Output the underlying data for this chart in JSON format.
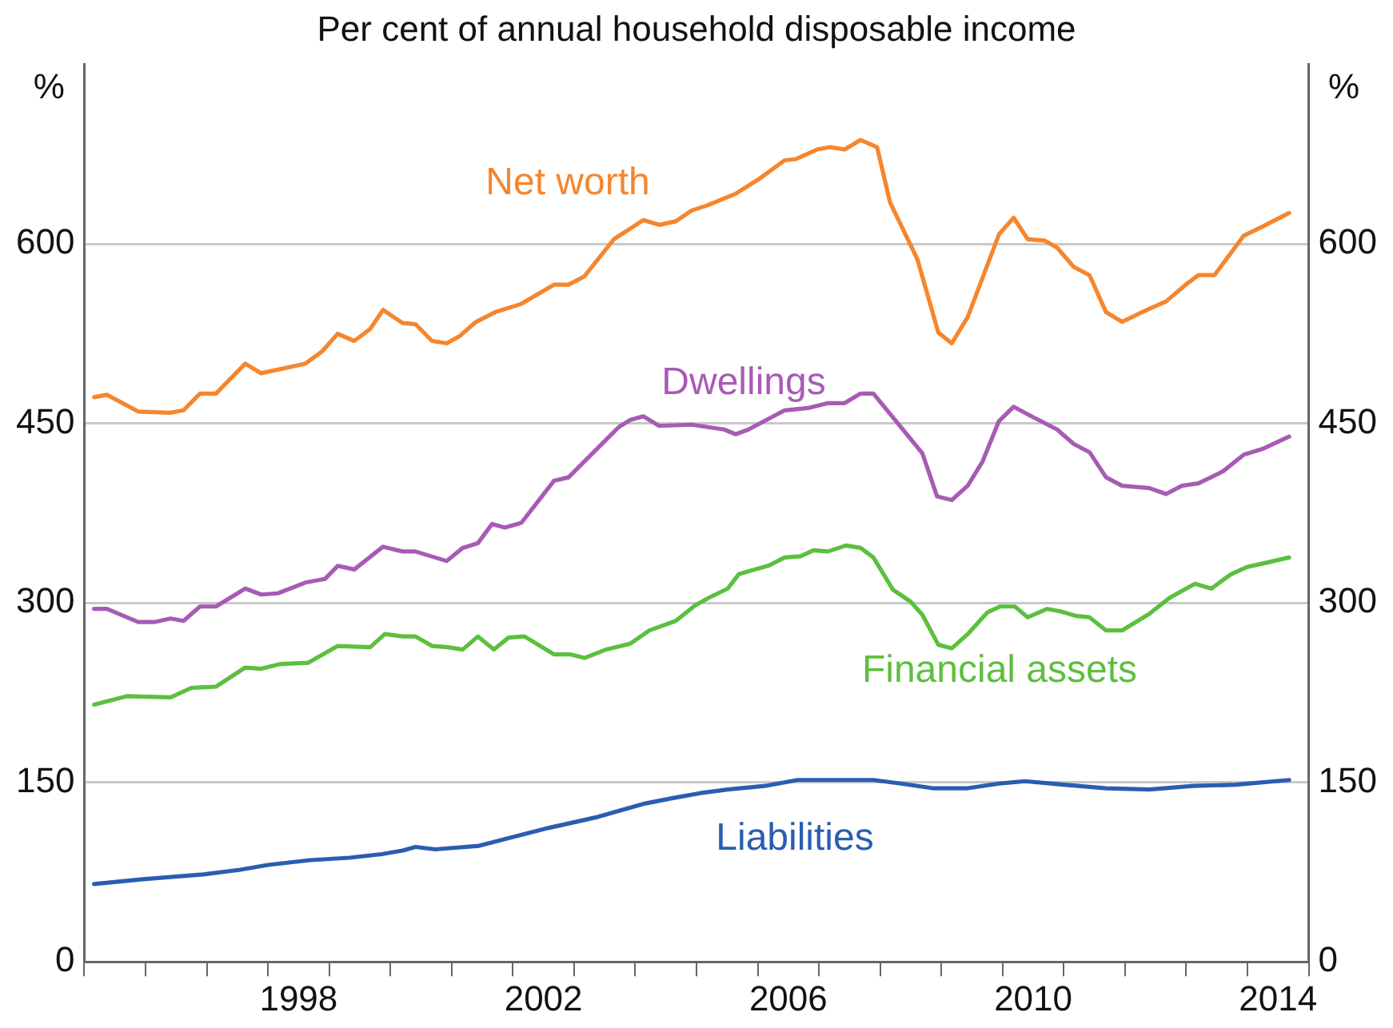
{
  "chart_data": {
    "type": "line",
    "title": "Per cent of annual household disposable income",
    "ylabel": "%",
    "y2label": "%",
    "xlim": [
      1995,
      2015
    ],
    "xticks": [
      {
        "value": 1995,
        "label": null
      },
      {
        "value": 1996,
        "label": null
      },
      {
        "value": 1997,
        "label": null
      },
      {
        "value": 1998,
        "label": null
      },
      {
        "value": 1998.5,
        "label": "1998"
      },
      {
        "value": 1999,
        "label": null
      },
      {
        "value": 2000,
        "label": null
      },
      {
        "value": 2001,
        "label": null
      },
      {
        "value": 2002,
        "label": null
      },
      {
        "value": 2002.5,
        "label": "2002"
      },
      {
        "value": 2003,
        "label": null
      },
      {
        "value": 2004,
        "label": null
      },
      {
        "value": 2005,
        "label": null
      },
      {
        "value": 2006,
        "label": null
      },
      {
        "value": 2006.5,
        "label": "2006"
      },
      {
        "value": 2007,
        "label": null
      },
      {
        "value": 2008,
        "label": null
      },
      {
        "value": 2009,
        "label": null
      },
      {
        "value": 2010,
        "label": null
      },
      {
        "value": 2010.5,
        "label": "2010"
      },
      {
        "value": 2011,
        "label": null
      },
      {
        "value": 2012,
        "label": null
      },
      {
        "value": 2013,
        "label": null
      },
      {
        "value": 2014,
        "label": null
      },
      {
        "value": 2014.5,
        "label": "2014"
      },
      {
        "value": 2015,
        "label": null
      }
    ],
    "ylim": [
      0,
      750
    ],
    "yticks": [
      0,
      150,
      300,
      450,
      600
    ],
    "y2lim": [
      0,
      750
    ],
    "y2ticks": [
      0,
      150,
      300,
      450,
      600
    ],
    "grid": "y",
    "legend": false,
    "marker": "none",
    "line_style": "solid",
    "series": [
      {
        "name": "Net worth",
        "color": "#f5862e",
        "x": [
          1995.16,
          1995.37,
          1995.88,
          1996.41,
          1996.62,
          1996.89,
          1997.15,
          1997.63,
          1997.89,
          1998.61,
          1998.88,
          1999.14,
          1999.41,
          1999.67,
          1999.88,
          2000.2,
          2000.41,
          2000.68,
          2000.92,
          2001.13,
          2001.4,
          2001.71,
          2002.14,
          2002.67,
          2002.91,
          2003.17,
          2003.65,
          2003.92,
          2004.13,
          2004.39,
          2004.66,
          2004.92,
          2005.16,
          2005.64,
          2006.04,
          2006.44,
          2006.62,
          2006.97,
          2007.18,
          2007.42,
          2007.68,
          2007.95,
          2008.16,
          2008.61,
          2008.95,
          2009.17,
          2009.43,
          2009.94,
          2010.18,
          2010.41,
          2010.68,
          2010.89,
          2011.16,
          2011.42,
          2011.69,
          2011.95,
          2012.4,
          2012.67,
          2012.99,
          2013.2,
          2013.46,
          2013.94,
          2014.26,
          2014.68
        ],
        "values": [
          472,
          474,
          460,
          459,
          461,
          475,
          475,
          500,
          492,
          500,
          510,
          525,
          519,
          529,
          545,
          534,
          533,
          519,
          517,
          523,
          535,
          543,
          550,
          566,
          566,
          573,
          604,
          613,
          620,
          616,
          619,
          628,
          632,
          642,
          655,
          670,
          671,
          679,
          681,
          679,
          687,
          681,
          635,
          587,
          526,
          517,
          539,
          608,
          622,
          604,
          603,
          597,
          581,
          574,
          543,
          535,
          546,
          552,
          566,
          574,
          574,
          607,
          615,
          626
        ]
      },
      {
        "name": "Dwellings",
        "color": "#a75bb5",
        "x": [
          1995.16,
          1995.37,
          1995.88,
          1996.14,
          1996.41,
          1996.62,
          1996.89,
          1997.15,
          1997.63,
          1997.89,
          1998.16,
          1998.61,
          1998.93,
          1999.14,
          1999.41,
          1999.88,
          2000.2,
          2000.41,
          2000.92,
          2001.18,
          2001.43,
          2001.66,
          2001.87,
          2002.14,
          2002.67,
          2002.91,
          2003.73,
          2003.92,
          2004.13,
          2004.39,
          2004.92,
          2005.45,
          2005.64,
          2005.85,
          2006.44,
          2006.83,
          2007.15,
          2007.42,
          2007.68,
          2007.89,
          2008.69,
          2008.93,
          2009.17,
          2009.43,
          2009.67,
          2009.94,
          2010.18,
          2010.47,
          2010.89,
          2011.16,
          2011.42,
          2011.69,
          2011.95,
          2012.4,
          2012.67,
          2012.93,
          2013.2,
          2013.6,
          2013.94,
          2014.26,
          2014.68
        ],
        "values": [
          295,
          295,
          284,
          284,
          287,
          285,
          297,
          297,
          312,
          307,
          308,
          317,
          320,
          331,
          328,
          347,
          343,
          343,
          335,
          346,
          350,
          366,
          363,
          367,
          402,
          405,
          447,
          453,
          456,
          448,
          449,
          445,
          441,
          445,
          461,
          463,
          467,
          467,
          475,
          475,
          425,
          389,
          386,
          398,
          418,
          452,
          464,
          456,
          445,
          433,
          426,
          405,
          398,
          396,
          391,
          398,
          400,
          410,
          424,
          429,
          439
        ]
      },
      {
        "name": "Financial assets",
        "color": "#5cbf3f",
        "x": [
          1995.16,
          1995.69,
          1996.41,
          1996.75,
          1997.15,
          1997.63,
          1997.89,
          1998.21,
          1998.66,
          1999.14,
          1999.67,
          1999.91,
          2000.2,
          2000.41,
          2000.68,
          2000.94,
          2001.18,
          2001.43,
          2001.69,
          2001.93,
          2002.19,
          2002.67,
          2002.93,
          2003.17,
          2003.52,
          2003.92,
          2004.23,
          2004.66,
          2004.98,
          2005.19,
          2005.51,
          2005.69,
          2005.96,
          2006.17,
          2006.44,
          2006.7,
          2006.91,
          2007.15,
          2007.44,
          2007.68,
          2007.89,
          2008.21,
          2008.5,
          2008.69,
          2008.95,
          2009.17,
          2009.43,
          2009.75,
          2009.96,
          2010.2,
          2010.41,
          2010.73,
          2010.94,
          2011.21,
          2011.42,
          2011.69,
          2011.95,
          2012.4,
          2012.72,
          2013.14,
          2013.41,
          2013.73,
          2013.99,
          2014.34,
          2014.68
        ],
        "values": [
          215,
          222,
          221,
          229,
          230,
          246,
          245,
          249,
          250,
          264,
          263,
          274,
          272,
          272,
          264,
          263,
          261,
          272,
          261,
          271,
          272,
          257,
          257,
          254,
          261,
          266,
          277,
          285,
          298,
          304,
          312,
          324,
          328,
          331,
          338,
          339,
          344,
          343,
          348,
          346,
          338,
          311,
          301,
          290,
          265,
          262,
          274,
          292,
          297,
          297,
          288,
          295,
          293,
          289,
          288,
          277,
          277,
          291,
          304,
          316,
          312,
          324,
          330,
          334,
          338
        ]
      },
      {
        "name": "Liabilities",
        "color": "#2a5db0",
        "x": [
          1995.16,
          1995.96,
          1996.94,
          1997.55,
          1998,
          1998.69,
          1999.33,
          1999.86,
          2000.2,
          2000.41,
          2000.73,
          2001.45,
          2001.98,
          2002.59,
          2003.38,
          2004.13,
          2004.63,
          2005.06,
          2005.51,
          2006.12,
          2006.65,
          2007.42,
          2007.89,
          2008.34,
          2008.88,
          2009.41,
          2009.94,
          2010.36,
          2011,
          2011.69,
          2012.4,
          2013.12,
          2013.81,
          2014.68
        ],
        "values": [
          65,
          69,
          73,
          77,
          81,
          85,
          87,
          90,
          93,
          96,
          94,
          97,
          104,
          112,
          121,
          132,
          137,
          141,
          144,
          147,
          152,
          152,
          152,
          149,
          145,
          145,
          149,
          151,
          148,
          145,
          144,
          147,
          148,
          152
        ]
      }
    ]
  }
}
